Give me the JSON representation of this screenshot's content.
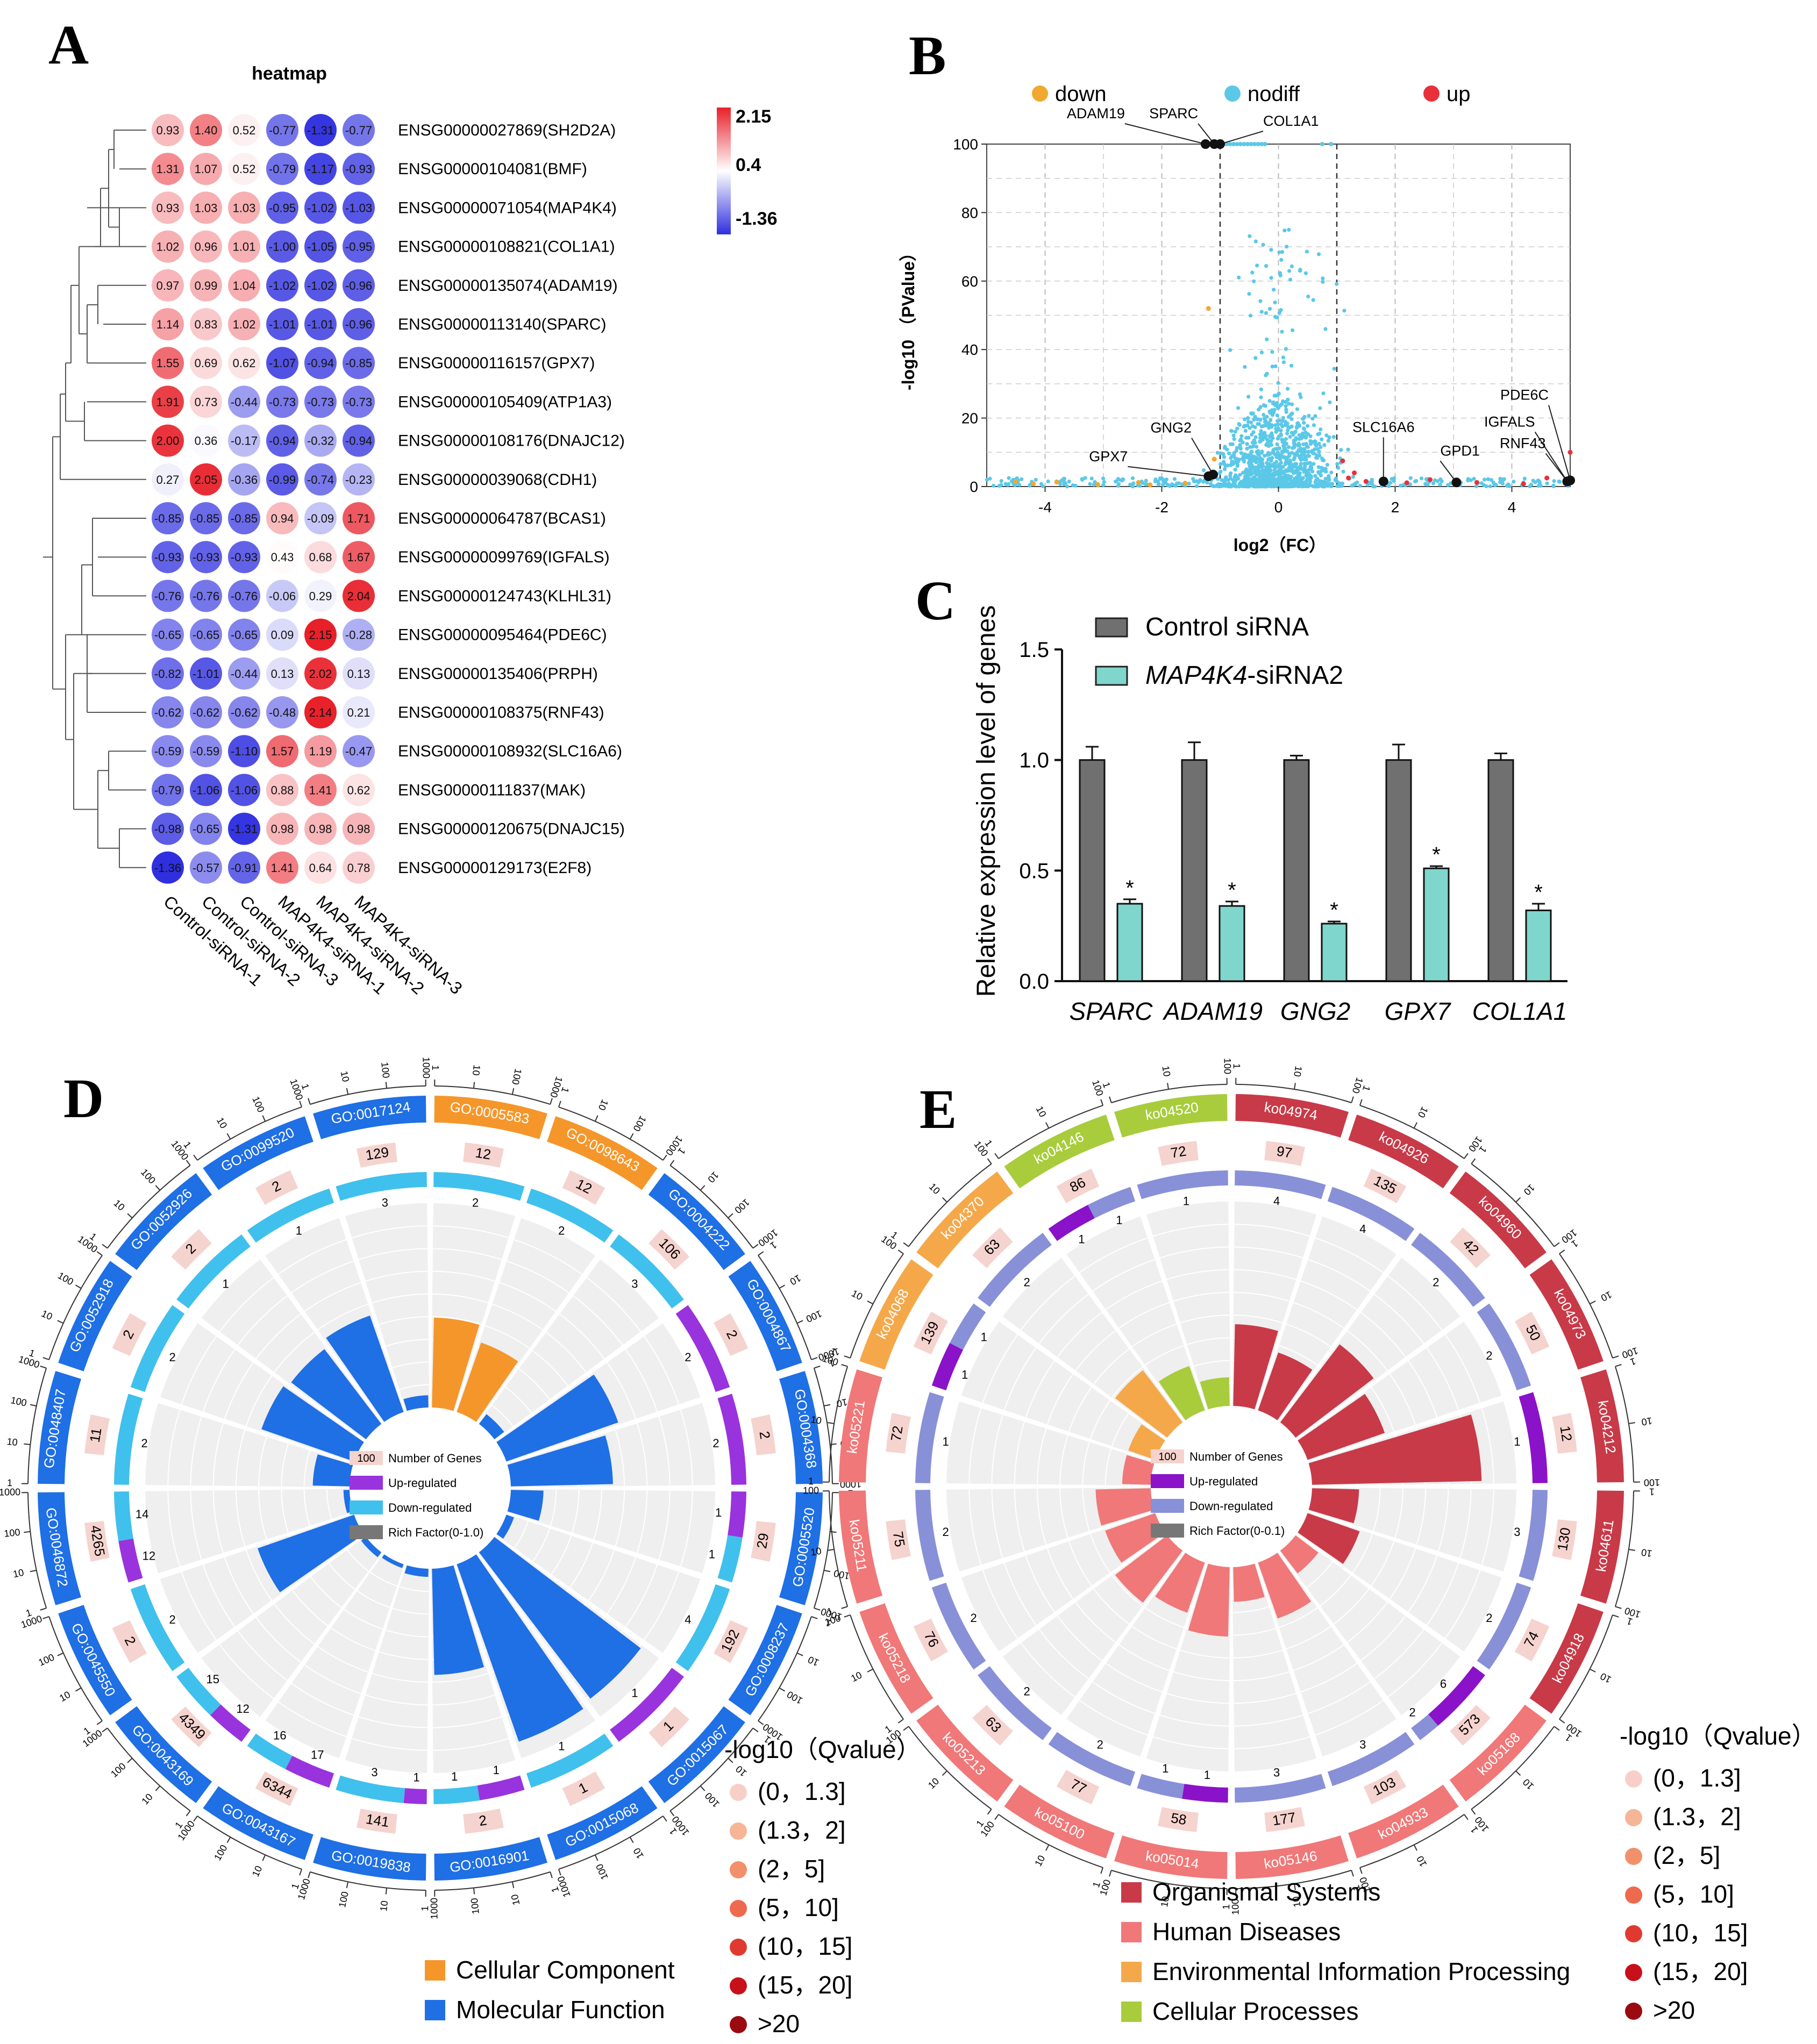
{
  "panel_letters": [
    "A",
    "B",
    "C",
    "D",
    "E"
  ],
  "colors": {
    "heat_high": "#e8202a",
    "heat_mid": "#ffffff",
    "heat_low": "#2f2fe0",
    "down": "#f0a830",
    "nodiff": "#5bc8e8",
    "up": "#e8303a",
    "bar_control": "#707070",
    "bar_sirna": "#7fd6cc",
    "go_cc": "#f5962a",
    "go_mf": "#1f6fe5",
    "go_up": "#9933dd",
    "go_down": "#40c0ec",
    "kegg_org": "#c83a48",
    "kegg_hum": "#f07878",
    "kegg_env": "#f5a84a",
    "kegg_cell": "#a8cc3c",
    "kegg_up": "#8a12c8",
    "kegg_down": "#8890d8",
    "q_levels": [
      "#f8cfc8",
      "#f6b596",
      "#f3906c",
      "#ee6a4e",
      "#e03a30",
      "#c8101a",
      "#9a0a10"
    ]
  },
  "chart_data": [
    {
      "panel": "A",
      "type": "heatmap",
      "title": "heatmap",
      "columns": [
        "Control-siRNA-1",
        "Control-siRNA-2",
        "Control-siRNA-3",
        "MAP4K4-siRNA-1",
        "MAP4K4-siRNA-2",
        "MAP4K4-siRNA-3"
      ],
      "rows": [
        "ENSG00000027869(SH2D2A)",
        "ENSG00000104081(BMF)",
        "ENSG00000071054(MAP4K4)",
        "ENSG00000108821(COL1A1)",
        "ENSG00000135074(ADAM19)",
        "ENSG00000113140(SPARC)",
        "ENSG00000116157(GPX7)",
        "ENSG00000105409(ATP1A3)",
        "ENSG00000108176(DNAJC12)",
        "ENSG00000039068(CDH1)",
        "ENSG00000064787(BCAS1)",
        "ENSG00000099769(IGFALS)",
        "ENSG00000124743(KLHL31)",
        "ENSG00000095464(PDE6C)",
        "ENSG00000135406(PRPH)",
        "ENSG00000108375(RNF43)",
        "ENSG00000108932(SLC16A6)",
        "ENSG00000111837(MAK)",
        "ENSG00000120675(DNAJC15)",
        "ENSG00000129173(E2F8)"
      ],
      "values": [
        [
          0.93,
          1.4,
          0.52,
          -0.77,
          -1.31,
          -0.77
        ],
        [
          1.31,
          1.07,
          0.52,
          -0.79,
          -1.17,
          -0.93
        ],
        [
          0.93,
          1.03,
          1.03,
          -0.95,
          -1.02,
          -1.03
        ],
        [
          1.02,
          0.96,
          1.01,
          -1.0,
          -1.05,
          -0.95
        ],
        [
          0.97,
          0.99,
          1.04,
          -1.02,
          -1.02,
          -0.96
        ],
        [
          1.14,
          0.83,
          1.02,
          -1.01,
          -1.01,
          -0.96
        ],
        [
          1.55,
          0.69,
          0.62,
          -1.07,
          -0.94,
          -0.85
        ],
        [
          1.91,
          0.73,
          -0.44,
          -0.73,
          -0.73,
          -0.73
        ],
        [
          2.0,
          0.36,
          -0.17,
          -0.94,
          -0.32,
          -0.94
        ],
        [
          0.27,
          2.05,
          -0.36,
          -0.99,
          -0.74,
          -0.23
        ],
        [
          -0.85,
          -0.85,
          -0.85,
          0.94,
          -0.09,
          1.71
        ],
        [
          -0.93,
          -0.93,
          -0.93,
          0.43,
          0.68,
          1.67
        ],
        [
          -0.76,
          -0.76,
          -0.76,
          -0.06,
          0.29,
          2.04
        ],
        [
          -0.65,
          -0.65,
          -0.65,
          0.09,
          2.15,
          -0.28
        ],
        [
          -0.82,
          -1.01,
          -0.44,
          0.13,
          2.02,
          0.13
        ],
        [
          -0.62,
          -0.62,
          -0.62,
          -0.48,
          2.14,
          0.21
        ],
        [
          -0.59,
          -0.59,
          -1.1,
          1.57,
          1.19,
          -0.47
        ],
        [
          -0.79,
          -1.06,
          -1.06,
          0.88,
          1.41,
          0.62
        ],
        [
          -0.98,
          -0.65,
          -1.31,
          0.98,
          0.98,
          0.98
        ],
        [
          -1.36,
          -0.57,
          -0.91,
          1.41,
          0.64,
          0.78
        ]
      ],
      "value_labels": [
        [
          "0.93",
          "1.40",
          "0.52",
          "-0.77",
          "-1.31",
          "-0.77"
        ],
        [
          "1.31",
          "1.07",
          "0.52",
          "-0.79",
          "-1.17",
          "-0.93"
        ],
        [
          "0.93",
          "1.03",
          "1.03",
          "-0.95",
          "-1.02",
          "-1.03"
        ],
        [
          "1.02",
          "0.96",
          "1.01",
          "-1.00",
          "-1.05",
          "-0.95"
        ],
        [
          "0.97",
          "0.99",
          "1.04",
          "-1.02",
          "-1.02",
          "-0.96"
        ],
        [
          "1.14",
          "0.83",
          "1.02",
          "-1.01",
          "-1.01",
          "-0.96"
        ],
        [
          "1.55",
          "0.69",
          "0.62",
          "-1.07",
          "-0.94",
          "-0.85"
        ],
        [
          "1.91",
          "0.73",
          "-0.44",
          "-0.73",
          "-0.73",
          "-0.73"
        ],
        [
          "2.00",
          "0.36",
          "-0.17",
          "-0.94",
          "-0.32",
          "-0.94"
        ],
        [
          "0.27",
          "2.05",
          "-0.36",
          "-0.99",
          "-0.74",
          "-0.23"
        ],
        [
          "-0.85",
          "-0.85",
          "-0.85",
          "0.94",
          "-0.09",
          "1.71"
        ],
        [
          "-0.93",
          "-0.93",
          "-0.93",
          "0.43",
          "0.68",
          "1.67"
        ],
        [
          "-0.76",
          "-0.76",
          "-0.76",
          "-0.06",
          "0.29",
          "2.04"
        ],
        [
          "-0.65",
          "-0.65",
          "-0.65",
          "0.09",
          "2.15",
          "-0.28"
        ],
        [
          "-0.82",
          "-1.01",
          "-0.44",
          "0.13",
          "2.02",
          "0.13"
        ],
        [
          "-0.62",
          "-0.62",
          "-0.62",
          "-0.48",
          "2.14",
          "0.21"
        ],
        [
          "-0.59",
          "-0.59",
          "-1.10",
          "1.57",
          "1.19",
          "-0.47"
        ],
        [
          "-0.79",
          "-1.06",
          "-1.06",
          "0.88",
          "1.41",
          "0.62"
        ],
        [
          "-0.98",
          "-0.65",
          "-1.31",
          "0.98",
          "0.98",
          "0.98"
        ],
        [
          "-1.36",
          "-0.57",
          "-0.91",
          "1.41",
          "0.64",
          "0.78"
        ]
      ],
      "scale": {
        "max": 2.15,
        "mid": 0.4,
        "min": -1.36,
        "labels": [
          "2.15",
          "0.4",
          "-1.36"
        ]
      }
    },
    {
      "panel": "B",
      "type": "scatter",
      "xlabel": "log2（FC）",
      "ylabel": "-log10 （PValue）",
      "xlim": [
        -5,
        5
      ],
      "ylim": [
        0,
        100
      ],
      "xticks": [
        -4,
        -2,
        0,
        2,
        4
      ],
      "yticks": [
        0,
        20,
        40,
        60,
        80,
        100
      ],
      "thresholds_x": [
        -1,
        1
      ],
      "grid": true,
      "legend_position": "top",
      "legend": [
        "down",
        "nodiff",
        "up"
      ],
      "labeled_points": [
        {
          "label": "ADAM19",
          "x": -1.25,
          "y": 100
        },
        {
          "label": "SPARC",
          "x": -1.1,
          "y": 100
        },
        {
          "label": "COL1A1",
          "x": -1.0,
          "y": 100
        },
        {
          "label": "GNG2",
          "x": -1.12,
          "y": 3.5
        },
        {
          "label": "GPX7",
          "x": -1.2,
          "y": 3.0
        },
        {
          "label": "SLC16A6",
          "x": 1.8,
          "y": 1.5
        },
        {
          "label": "GPD1",
          "x": 3.05,
          "y": 1.2
        },
        {
          "label": "IGFALS",
          "x": 4.95,
          "y": 1.5
        },
        {
          "label": "RNF43",
          "x": 4.95,
          "y": 1.5
        },
        {
          "label": "PDE6C",
          "x": 5.0,
          "y": 1.8
        }
      ]
    },
    {
      "panel": "C",
      "type": "bar",
      "ylabel": "Relative expression level of genes",
      "ylim": [
        0,
        1.5
      ],
      "yticks": [
        "0.0",
        "0.5",
        "1.0",
        "1.5"
      ],
      "categories": [
        "SPARC",
        "ADAM19",
        "GNG2",
        "GPX7",
        "COL1A1"
      ],
      "series": [
        {
          "name": "Control siRNA",
          "values": [
            1.0,
            1.0,
            1.0,
            1.0,
            1.0
          ],
          "errors": [
            0.06,
            0.08,
            0.02,
            0.07,
            0.03
          ]
        },
        {
          "name": "MAP4K4-siRNA2",
          "name_prefix": "MAP4K4",
          "name_suffix": "-siRNA2",
          "values": [
            0.35,
            0.34,
            0.26,
            0.51,
            0.32
          ],
          "errors": [
            0.02,
            0.02,
            0.01,
            0.01,
            0.03
          ]
        }
      ],
      "significance": [
        "*",
        "*",
        "*",
        "*",
        "*"
      ]
    },
    {
      "panel": "D",
      "type": "bar",
      "subtype": "circular-enrichment",
      "categories": [
        {
          "id": "GO:0005583",
          "cls": "CC",
          "count": "12",
          "up": 0,
          "down": 2,
          "rf": 0.44
        },
        {
          "id": "GO:0098643",
          "cls": "CC",
          "count": "12",
          "up": 0,
          "down": 2,
          "rf": 0.36
        },
        {
          "id": "GO:0004222",
          "cls": "MF",
          "count": "106",
          "up": 0,
          "down": 3,
          "rf": 0.06
        },
        {
          "id": "GO:0004867",
          "cls": "MF",
          "count": "2",
          "up": 2,
          "down": 0,
          "rf": 0.58
        },
        {
          "id": "GO:0004368",
          "cls": "MF",
          "count": "2",
          "up": 2,
          "down": 0,
          "rf": 0.5
        },
        {
          "id": "GO:0005520",
          "cls": "MF",
          "count": "29",
          "up": 1,
          "down": 1,
          "rf": 0.16
        },
        {
          "id": "GO:0008237",
          "cls": "MF",
          "count": "192",
          "up": 0,
          "down": 4,
          "rf": 0.04
        },
        {
          "id": "GO:0015067",
          "cls": "MF",
          "count": "1",
          "up": 1,
          "down": 0,
          "rf": 0.9
        },
        {
          "id": "GO:0015068",
          "cls": "MF",
          "count": "1",
          "up": 0,
          "down": 1,
          "rf": 0.92
        },
        {
          "id": "GO:0016901",
          "cls": "MF",
          "count": "2",
          "up": 1,
          "down": 1,
          "rf": 0.52
        },
        {
          "id": "GO:0019838",
          "cls": "MF",
          "count": "141",
          "up": 1,
          "down": 3,
          "rf": 0.04
        },
        {
          "id": "GO:0043167",
          "cls": "MF",
          "count": "6344",
          "up": 17,
          "down": 16,
          "rf": 0.02
        },
        {
          "id": "GO:0043169",
          "cls": "MF",
          "count": "4349",
          "up": 12,
          "down": 15,
          "rf": 0.03
        },
        {
          "id": "GO:0045550",
          "cls": "MF",
          "count": "2",
          "up": 0,
          "down": 2,
          "rf": 0.5
        },
        {
          "id": "GO:0046872",
          "cls": "MF",
          "count": "4265",
          "up": 12,
          "down": 14,
          "rf": 0.03
        },
        {
          "id": "GO:0048407",
          "cls": "MF",
          "count": "11",
          "up": 0,
          "down": 2,
          "rf": 0.18
        },
        {
          "id": "GO:0052918",
          "cls": "MF",
          "count": "2",
          "up": 0,
          "down": 2,
          "rf": 0.48
        },
        {
          "id": "GO:0052926",
          "cls": "MF",
          "count": "2",
          "up": 0,
          "down": 1,
          "rf": 0.46
        },
        {
          "id": "GO:0099520",
          "cls": "MF",
          "count": "2",
          "up": 0,
          "down": 1,
          "rf": 0.5
        },
        {
          "id": "GO:0017124",
          "cls": "MF",
          "count": "129",
          "up": 0,
          "down": 3,
          "rf": 0.06
        }
      ],
      "inner_legend": [
        "Number of Genes",
        "Up-regulated",
        "Down-regulated",
        "Rich Factor(0-1.0)"
      ],
      "inner_legend_box": "100",
      "q_legend_title": "-log10（Qvalue）",
      "q_levels": [
        "(0，1.3]",
        "(1.3，2]",
        "(2，5]",
        "(5，10]",
        "(10，15]",
        "(15，20]",
        ">20"
      ],
      "class_legend": [
        "Cellular Component",
        "Molecular Function"
      ]
    },
    {
      "panel": "E",
      "type": "bar",
      "subtype": "circular-enrichment",
      "categories": [
        {
          "id": "ko04974",
          "cls": "ORG",
          "count": "97",
          "up": 0,
          "down": 4,
          "rf": 0.04
        },
        {
          "id": "ko04926",
          "cls": "ORG",
          "count": "135",
          "up": 0,
          "down": 4,
          "rf": 0.03
        },
        {
          "id": "ko04960",
          "cls": "ORG",
          "count": "42",
          "up": 0,
          "down": 2,
          "rf": 0.048
        },
        {
          "id": "ko04973",
          "cls": "ORG",
          "count": "50",
          "up": 0,
          "down": 2,
          "rf": 0.04
        },
        {
          "id": "ko04212",
          "cls": "ORG",
          "count": "12",
          "up": 1,
          "down": 0,
          "rf": 0.083
        },
        {
          "id": "ko04611",
          "cls": "ORG",
          "count": "130",
          "up": 0,
          "down": 3,
          "rf": 0.023
        },
        {
          "id": "ko04918",
          "cls": "ORG",
          "count": "74",
          "up": 0,
          "down": 2,
          "rf": 0.027
        },
        {
          "id": "ko05168",
          "cls": "HUM",
          "count": "573",
          "up": 6,
          "down": 2,
          "rf": 0.014
        },
        {
          "id": "ko04933",
          "cls": "HUM",
          "count": "103",
          "up": 0,
          "down": 3,
          "rf": 0.029
        },
        {
          "id": "ko05146",
          "cls": "HUM",
          "count": "177",
          "up": 0,
          "down": 3,
          "rf": 0.017
        },
        {
          "id": "ko05014",
          "cls": "HUM",
          "count": "58",
          "up": 1,
          "down": 1,
          "rf": 0.034
        },
        {
          "id": "ko05100",
          "cls": "HUM",
          "count": "77",
          "up": 0,
          "down": 2,
          "rf": 0.026
        },
        {
          "id": "ko05213",
          "cls": "HUM",
          "count": "63",
          "up": 0,
          "down": 2,
          "rf": 0.032
        },
        {
          "id": "ko05218",
          "cls": "HUM",
          "count": "76",
          "up": 0,
          "down": 2,
          "rf": 0.026
        },
        {
          "id": "ko05211",
          "cls": "HUM",
          "count": "75",
          "up": 0,
          "down": 2,
          "rf": 0.027
        },
        {
          "id": "ko05221",
          "cls": "HUM",
          "count": "72",
          "up": 0,
          "down": 1,
          "rf": 0.014
        },
        {
          "id": "ko04068",
          "cls": "ENV",
          "count": "139",
          "up": 1,
          "down": 1,
          "rf": 0.014
        },
        {
          "id": "ko04370",
          "cls": "ENV",
          "count": "63",
          "up": 0,
          "down": 2,
          "rf": 0.032
        },
        {
          "id": "ko04146",
          "cls": "CELL",
          "count": "86",
          "up": 1,
          "down": 1,
          "rf": 0.023
        },
        {
          "id": "ko04520",
          "cls": "CELL",
          "count": "72",
          "up": 0,
          "down": 1,
          "rf": 0.014
        }
      ],
      "inner_legend": [
        "Number of Genes",
        "Up-regulated",
        "Down-regulated",
        "Rich Factor(0-0.1)"
      ],
      "inner_legend_box": "100",
      "q_legend_title": "-log10（Qvalue）",
      "q_levels": [
        "(0，1.3]",
        "(1.3，2]",
        "(2，5]",
        "(5，10]",
        "(10，15]",
        "(15，20]",
        ">20"
      ],
      "class_legend": [
        "Organismal Systems",
        "Human Diseases",
        "Environmental Information Processing",
        "Cellular Processes"
      ]
    }
  ]
}
